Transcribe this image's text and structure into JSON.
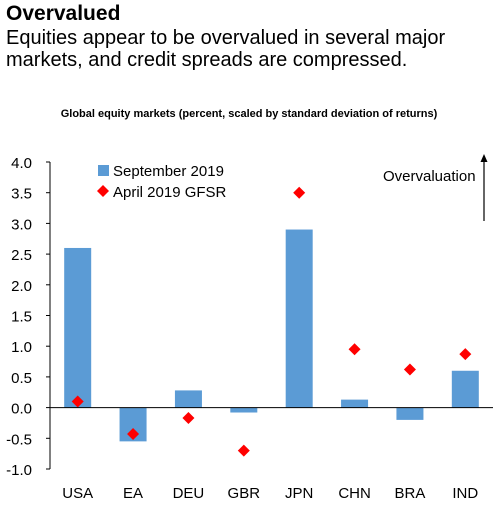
{
  "header": {
    "title": "Overvalued",
    "subtitle": "Equities appear to be overvalued in several major markets, and credit spreads are compressed."
  },
  "chart_data": {
    "type": "bar",
    "title": "Global equity markets (percent, scaled by standard deviation of returns)",
    "categories": [
      "USA",
      "EA",
      "DEU",
      "GBR",
      "JPN",
      "CHN",
      "BRA",
      "IND"
    ],
    "series": [
      {
        "name": "September 2019",
        "kind": "bar",
        "color": "#5B9BD5",
        "values": [
          2.6,
          -0.55,
          0.28,
          -0.08,
          2.9,
          0.13,
          -0.2,
          0.6
        ]
      },
      {
        "name": "April 2019 GFSR",
        "kind": "marker",
        "marker": "diamond",
        "color": "#FF0000",
        "values": [
          0.1,
          -0.43,
          -0.17,
          -0.7,
          3.5,
          0.95,
          0.62,
          0.87
        ]
      }
    ],
    "ylim": [
      -1.0,
      4.0
    ],
    "yticks": [
      "-1.0",
      "-0.5",
      "0.0",
      "0.5",
      "1.0",
      "1.5",
      "2.0",
      "2.5",
      "3.0",
      "3.5",
      "4.0"
    ],
    "ytick_values": [
      -1.0,
      -0.5,
      0.0,
      0.5,
      1.0,
      1.5,
      2.0,
      2.5,
      3.0,
      3.5,
      4.0
    ],
    "annotation": "Overvaluation",
    "legend_position": "top-left",
    "grid": false
  }
}
